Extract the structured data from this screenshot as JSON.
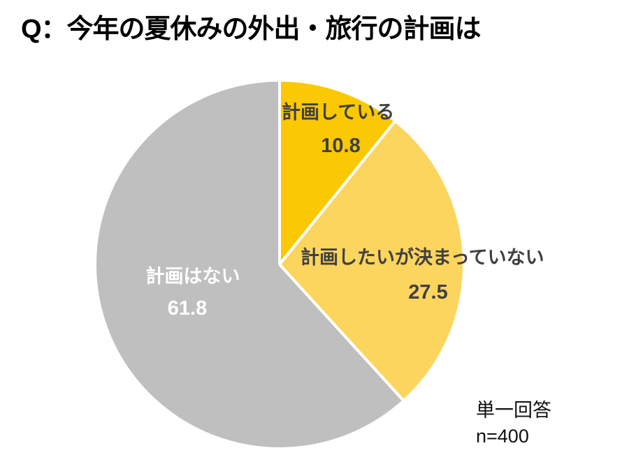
{
  "title": "Q：今年の夏休みの外出・旅行の計画は",
  "chart_data": {
    "type": "pie",
    "title": "Q：今年の夏休みの外出・旅行の計画は",
    "units": "percent",
    "start_angle_deg": 0,
    "direction": "clockwise",
    "separator_color": "#FFFFFF",
    "legend_position": "none",
    "slices": [
      {
        "label": "計画している",
        "value": 10.8,
        "color": "#FBC804",
        "label_color": "#404040"
      },
      {
        "label": "計画したいが決まっていない",
        "value": 27.5,
        "color": "#FCD55E",
        "label_color": "#404040"
      },
      {
        "label": "計画はない",
        "value": 61.8,
        "color": "#BFBFBF",
        "label_color": "#FFFFFF"
      }
    ]
  },
  "annotation": {
    "line1": "単一回答",
    "line2": "n=400"
  }
}
